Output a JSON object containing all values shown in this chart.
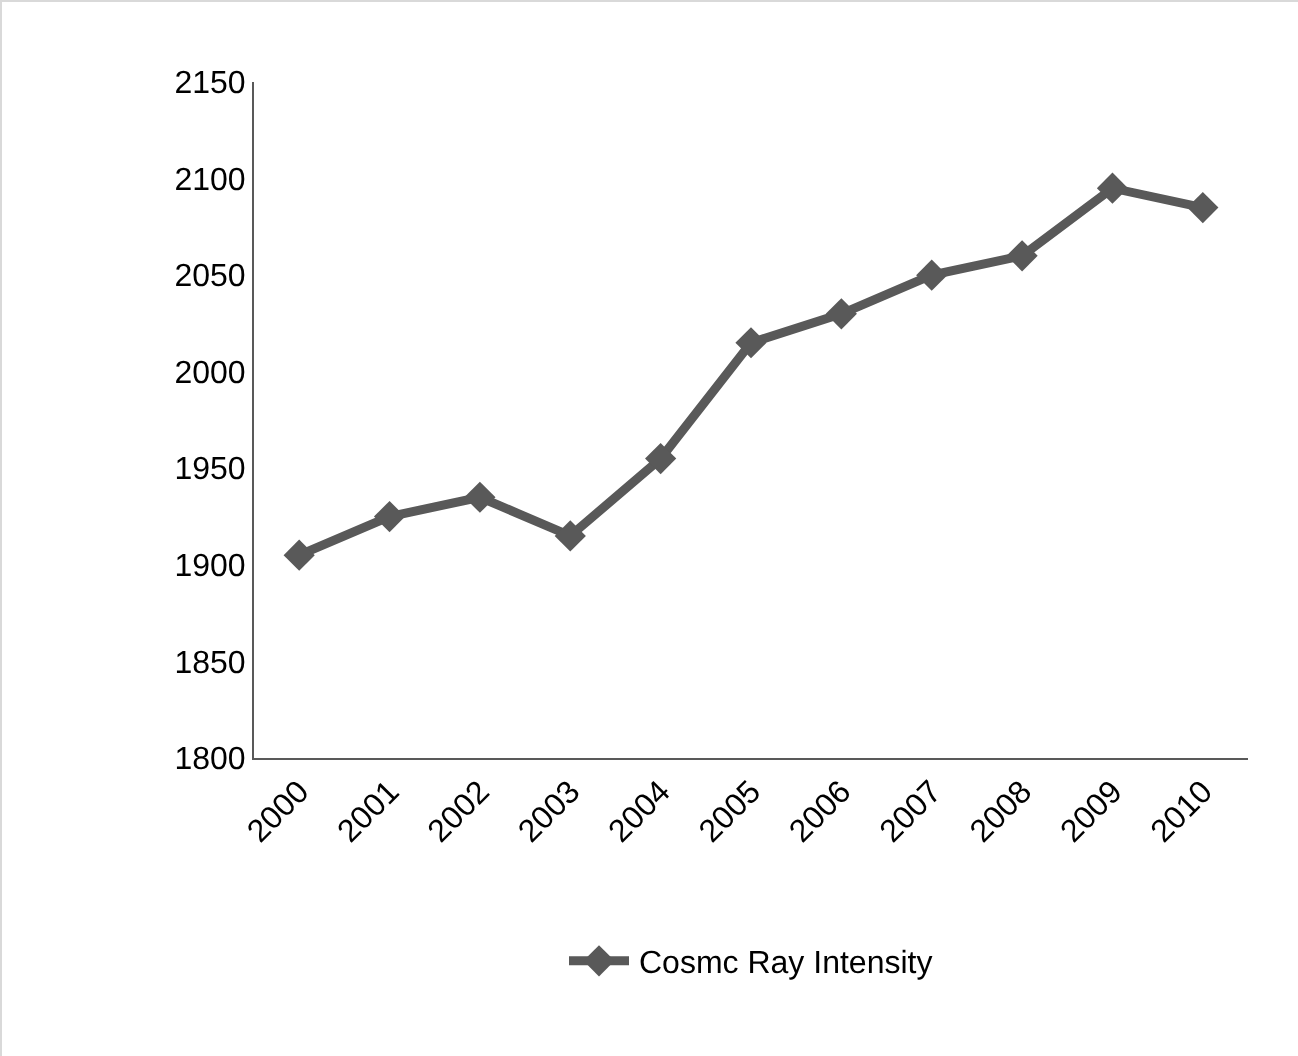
{
  "chart_data": {
    "type": "line",
    "categories": [
      "2000",
      "2001",
      "2002",
      "2003",
      "2004",
      "2005",
      "2006",
      "2007",
      "2008",
      "2009",
      "2010"
    ],
    "series": [
      {
        "name": "Cosmc Ray Intensity",
        "color": "#595959",
        "values": [
          1905,
          1925,
          1935,
          1915,
          1955,
          2015,
          2030,
          2050,
          2060,
          2095,
          2085
        ]
      }
    ],
    "ylim": [
      1800,
      2150
    ],
    "yticks": [
      1800,
      1850,
      1900,
      1950,
      2000,
      2050,
      2100,
      2150
    ],
    "grid": false,
    "legend": "bottom",
    "marker": "diamond",
    "line_style": "solid"
  }
}
